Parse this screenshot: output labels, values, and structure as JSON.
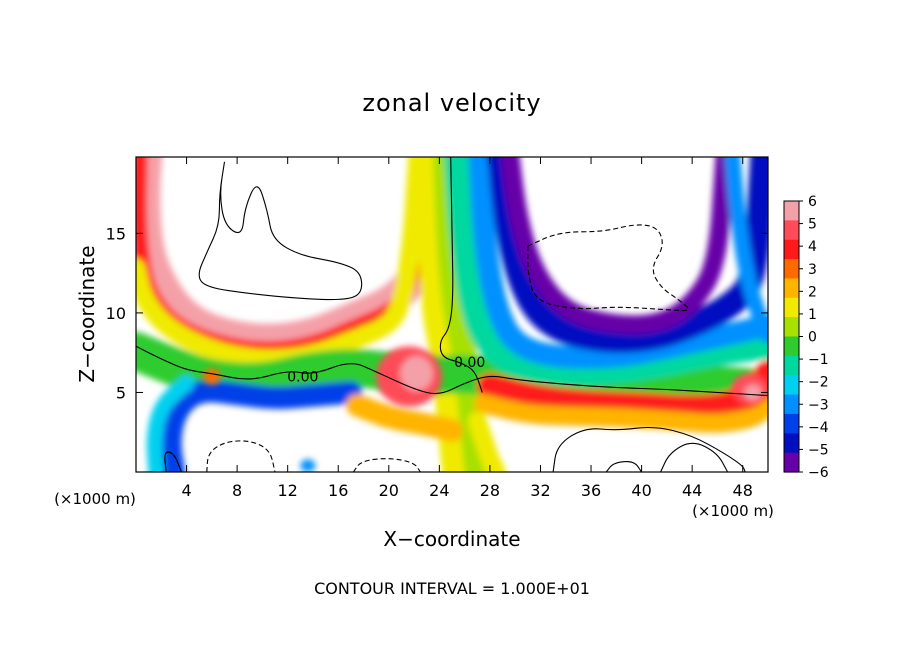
{
  "chart_data": {
    "type": "heatmap",
    "title": "zonal velocity",
    "xlabel": "X−coordinate",
    "ylabel": "Z−coordinate",
    "x_unit_left": "(×1000 m)",
    "x_unit_right": "(×1000 m)",
    "footer": "CONTOUR INTERVAL = 1.000E+01",
    "xlim": [
      0,
      50
    ],
    "ylim": [
      0,
      19.8
    ],
    "x_ticks": [
      4,
      8,
      12,
      16,
      20,
      24,
      28,
      32,
      36,
      40,
      44,
      48
    ],
    "y_ticks": [
      5,
      10,
      15
    ],
    "contour_labels": [
      {
        "text": "0.00",
        "x": 13.2,
        "y": 6.0
      },
      {
        "text": "0.00",
        "x": 26.4,
        "y": 6.9
      }
    ],
    "colorbar": {
      "range": [
        -6,
        6
      ],
      "ticks": [
        6,
        5,
        4,
        3,
        2,
        1,
        0,
        -1,
        -2,
        -3,
        -4,
        -5,
        -6
      ],
      "tick_labels": [
        "6",
        "5",
        "4",
        "3",
        "2",
        "1",
        "0",
        "−1",
        "−2",
        "−3",
        "−4",
        "−5",
        "−6"
      ],
      "colors": [
        "#f4a0a8",
        "#ff4c58",
        "#ff1a1a",
        "#ff6a00",
        "#ffb400",
        "#f0ea00",
        "#a8e000",
        "#2ecc2e",
        "#00d8a0",
        "#00d0f0",
        "#0090ff",
        "#0040e8",
        "#0010c0",
        "#6600a8"
      ]
    },
    "bands": [
      {
        "value": 5.2,
        "w": 2.0,
        "pts": [
          [
            0.8,
            19.8
          ],
          [
            0.6,
            17
          ],
          [
            0.9,
            14
          ],
          [
            1.8,
            12
          ],
          [
            3.5,
            10
          ],
          [
            6,
            8.8
          ],
          [
            10,
            8.2
          ],
          [
            14,
            8.6
          ],
          [
            17.5,
            9.8
          ],
          [
            20,
            10.6
          ],
          [
            22,
            12
          ],
          [
            23,
            15
          ],
          [
            23.6,
            19.8
          ]
        ]
      },
      {
        "value": 3.8,
        "w": 1.0,
        "pts": [
          [
            0.3,
            19.8
          ],
          [
            0.2,
            16
          ],
          [
            0.5,
            13
          ],
          [
            1.2,
            11
          ],
          [
            3,
            9.3
          ],
          [
            6,
            8.2
          ],
          [
            10,
            7.6
          ],
          [
            14,
            8.0
          ],
          [
            17.5,
            9.2
          ],
          [
            20,
            10.0
          ],
          [
            21.6,
            11.4
          ],
          [
            22.5,
            15
          ],
          [
            23,
            19.8
          ]
        ]
      },
      {
        "value": 1.6,
        "w": 1.2,
        "pts": [
          [
            0,
            12.8
          ],
          [
            0.6,
            10.8
          ],
          [
            2.5,
            9.0
          ],
          [
            6,
            7.6
          ],
          [
            10,
            7.0
          ],
          [
            14,
            7.3
          ],
          [
            17.5,
            8.4
          ],
          [
            20,
            9.2
          ],
          [
            21,
            10.5
          ],
          [
            21.8,
            14
          ],
          [
            22.3,
            19.8
          ]
        ]
      },
      {
        "value": 1.2,
        "w": 2.2,
        "pts": [
          [
            23.5,
            19.8
          ],
          [
            23.7,
            14
          ],
          [
            24,
            10
          ],
          [
            24.6,
            7.8
          ],
          [
            25,
            5
          ],
          [
            25.3,
            2.5
          ],
          [
            25.6,
            0
          ]
        ]
      },
      {
        "value": 0.3,
        "w": 1.6,
        "pts": [
          [
            24.5,
            19.8
          ],
          [
            24.8,
            14
          ],
          [
            25.3,
            10
          ],
          [
            26,
            7.5
          ],
          [
            26.5,
            4
          ],
          [
            27,
            0
          ]
        ]
      },
      {
        "value": 0.0,
        "w": 2.4,
        "pts": [
          [
            0,
            7.6
          ],
          [
            3,
            6.6
          ],
          [
            6,
            5.8
          ],
          [
            10,
            5.6
          ],
          [
            14,
            6.4
          ],
          [
            18,
            6.6
          ],
          [
            22,
            6.0
          ],
          [
            26,
            6.2
          ],
          [
            30,
            5.9
          ],
          [
            34,
            5.6
          ],
          [
            38,
            5.5
          ],
          [
            42,
            5.6
          ],
          [
            46,
            5.5
          ],
          [
            50,
            5.2
          ]
        ]
      },
      {
        "value": -1.4,
        "w": 1.8,
        "pts": [
          [
            25.5,
            19.8
          ],
          [
            26,
            14
          ],
          [
            26.8,
            10
          ],
          [
            28,
            8
          ],
          [
            30,
            6.8
          ],
          [
            34,
            6.3
          ],
          [
            38,
            6.4
          ],
          [
            42,
            6.9
          ],
          [
            46,
            7.6
          ],
          [
            50,
            8.0
          ]
        ]
      },
      {
        "value": -3.2,
        "w": 1.4,
        "pts": [
          [
            27.2,
            19.8
          ],
          [
            27.6,
            14
          ],
          [
            28.6,
            10
          ],
          [
            30,
            8.0
          ],
          [
            33,
            7.2
          ],
          [
            38,
            7.2
          ],
          [
            42,
            7.8
          ],
          [
            46,
            8.5
          ],
          [
            50,
            9.2
          ]
        ]
      },
      {
        "value": -4.8,
        "w": 1.6,
        "pts": [
          [
            28.8,
            19.8
          ],
          [
            29.4,
            15
          ],
          [
            30.8,
            11
          ],
          [
            33,
            9.0
          ],
          [
            37,
            8.2
          ],
          [
            41,
            8.4
          ],
          [
            44,
            9.2
          ],
          [
            47,
            10.4
          ],
          [
            49,
            12
          ],
          [
            49.6,
            19.8
          ]
        ]
      },
      {
        "value": -5.6,
        "w": 1.2,
        "pts": [
          [
            29.6,
            19.8
          ],
          [
            30.2,
            16
          ],
          [
            31.5,
            12.5
          ],
          [
            34,
            10
          ],
          [
            38,
            9.2
          ],
          [
            41.5,
            9.3
          ],
          [
            44,
            10.5
          ],
          [
            46,
            13
          ],
          [
            46.6,
            19.8
          ]
        ]
      },
      {
        "value": -3.0,
        "w": 1.0,
        "pts": [
          [
            47.2,
            19.8
          ],
          [
            47.6,
            16
          ],
          [
            48.4,
            12
          ],
          [
            49.4,
            9.6
          ],
          [
            50,
            8.6
          ]
        ]
      },
      {
        "value": -3.6,
        "w": 1.4,
        "pts": [
          [
            3,
            0
          ],
          [
            2.6,
            2
          ],
          [
            3.2,
            4
          ],
          [
            5,
            5.2
          ],
          [
            8,
            4.9
          ],
          [
            11,
            4.6
          ],
          [
            14,
            4.8
          ],
          [
            17,
            5.0
          ]
        ]
      },
      {
        "value": -2.2,
        "w": 1.0,
        "pts": [
          [
            1.6,
            0
          ],
          [
            1.4,
            2.2
          ],
          [
            2.0,
            4.2
          ],
          [
            4,
            5.6
          ]
        ]
      },
      {
        "value": 2.2,
        "w": 1.4,
        "pts": [
          [
            17.5,
            4.2
          ],
          [
            20,
            3.4
          ],
          [
            23,
            3.0
          ],
          [
            25,
            2.6
          ]
        ]
      },
      {
        "value": 4.2,
        "w": 1.6,
        "pts": [
          [
            28,
            5.4
          ],
          [
            32,
            4.6
          ],
          [
            36,
            4.3
          ],
          [
            40,
            4.2
          ],
          [
            44,
            4.0
          ],
          [
            47,
            4.2
          ],
          [
            49,
            5.0
          ],
          [
            50,
            6.2
          ]
        ]
      },
      {
        "value": 2.0,
        "w": 1.2,
        "pts": [
          [
            27.5,
            4.3
          ],
          [
            31,
            3.6
          ],
          [
            35,
            3.5
          ],
          [
            39,
            3.4
          ],
          [
            43,
            3.2
          ],
          [
            46,
            3.0
          ],
          [
            49,
            3.4
          ],
          [
            50,
            4.2
          ]
        ]
      },
      {
        "value": 1.0,
        "w": 1.2,
        "pts": [
          [
            27,
            3.2
          ],
          [
            27.5,
            2.0
          ],
          [
            28,
            0.8
          ],
          [
            28.5,
            0
          ]
        ]
      }
    ],
    "blobs": [
      {
        "value": 4.5,
        "cx": 21.6,
        "cy": 6.0,
        "rx": 2.6,
        "ry": 1.9
      },
      {
        "value": 5.4,
        "cx": 22.2,
        "cy": 6.2,
        "rx": 1.3,
        "ry": 1.1
      },
      {
        "value": 5.8,
        "cx": 22.4,
        "cy": 6.3,
        "rx": 0.7,
        "ry": 0.6
      },
      {
        "value": 4.8,
        "cx": 48.6,
        "cy": 5.2,
        "rx": 1.5,
        "ry": 1.0
      },
      {
        "value": 5.6,
        "cx": 48.8,
        "cy": 5.0,
        "rx": 0.7,
        "ry": 0.5
      },
      {
        "value": 3.4,
        "cx": 6.0,
        "cy": 6.0,
        "rx": 0.7,
        "ry": 0.5
      },
      {
        "value": -3.4,
        "cx": 13.6,
        "cy": 0.4,
        "rx": 0.6,
        "ry": 0.4
      }
    ],
    "contour_lines": [
      {
        "style": "solid",
        "pts": [
          [
            0,
            7.9
          ],
          [
            2,
            7.1
          ],
          [
            4,
            6.4
          ],
          [
            6,
            6.2
          ],
          [
            9,
            5.7
          ],
          [
            12,
            6.4
          ],
          [
            14,
            6.1
          ],
          [
            17,
            7.0
          ],
          [
            19,
            6.3
          ],
          [
            22,
            5.2
          ],
          [
            24,
            4.8
          ],
          [
            26,
            5.6
          ],
          [
            28,
            6.1
          ],
          [
            30,
            5.8
          ],
          [
            34,
            5.5
          ],
          [
            38,
            5.3
          ],
          [
            42,
            5.2
          ],
          [
            46,
            5.0
          ],
          [
            50,
            4.8
          ]
        ]
      },
      {
        "style": "solid",
        "pts": [
          [
            24.9,
            19.8
          ],
          [
            25.0,
            15
          ],
          [
            25.1,
            11
          ],
          [
            24.8,
            9.0
          ],
          [
            24.0,
            8.2
          ],
          [
            24.2,
            7.2
          ],
          [
            25.6,
            6.9
          ],
          [
            26.8,
            6.4
          ],
          [
            27.4,
            5.0
          ]
        ]
      },
      {
        "style": "solid",
        "pts": [
          [
            7,
            19.5
          ],
          [
            6.6,
            17.5
          ],
          [
            7.0,
            15.5
          ],
          [
            8.4,
            14.8
          ],
          [
            8.6,
            16.6
          ],
          [
            9.6,
            18.4
          ],
          [
            10.4,
            16.4
          ],
          [
            10.8,
            14.6
          ],
          [
            13,
            13.6
          ],
          [
            16,
            13.2
          ],
          [
            17.8,
            12.6
          ],
          [
            17.9,
            11.2
          ],
          [
            16.5,
            10.8
          ],
          [
            13,
            10.9
          ],
          [
            9,
            11.2
          ],
          [
            5.6,
            11.6
          ],
          [
            4.8,
            12.3
          ],
          [
            5.6,
            13.8
          ],
          [
            6.6,
            15.5
          ],
          [
            6.6,
            17.5
          ],
          [
            7,
            19.5
          ]
        ]
      },
      {
        "style": "dashed",
        "pts": [
          [
            31,
            14.2
          ],
          [
            33.5,
            15.1
          ],
          [
            37,
            15.1
          ],
          [
            39.5,
            15.6
          ],
          [
            41.3,
            15.4
          ],
          [
            41.8,
            14.2
          ],
          [
            40.7,
            12.8
          ],
          [
            41.5,
            11.6
          ],
          [
            43,
            10.8
          ],
          [
            44,
            10.1
          ],
          [
            42,
            10.2
          ],
          [
            38,
            10.4
          ],
          [
            35,
            10.2
          ],
          [
            31.6,
            10.7
          ],
          [
            31.0,
            12.5
          ],
          [
            31,
            14.2
          ]
        ]
      },
      {
        "style": "dashed",
        "pts": [
          [
            5.6,
            0
          ],
          [
            5.7,
            1.2
          ],
          [
            7,
            1.9
          ],
          [
            9,
            2.0
          ],
          [
            10.6,
            1.4
          ],
          [
            11,
            0
          ]
        ]
      },
      {
        "style": "dashed",
        "pts": [
          [
            17.2,
            0
          ],
          [
            17.8,
            0.7
          ],
          [
            20,
            0.9
          ],
          [
            22,
            0.6
          ],
          [
            22.5,
            0
          ]
        ]
      },
      {
        "style": "solid",
        "pts": [
          [
            33,
            0
          ],
          [
            33.3,
            1.7
          ],
          [
            35.5,
            2.8
          ],
          [
            38,
            2.6
          ],
          [
            41,
            2.9
          ],
          [
            44,
            2.3
          ],
          [
            46.5,
            1.2
          ],
          [
            48,
            0.4
          ],
          [
            48.2,
            0
          ]
        ]
      },
      {
        "style": "solid",
        "pts": [
          [
            41.5,
            0
          ],
          [
            42.2,
            1.2
          ],
          [
            44,
            2.0
          ],
          [
            46,
            1.2
          ],
          [
            46.8,
            0
          ]
        ]
      },
      {
        "style": "solid",
        "pts": [
          [
            37.2,
            0
          ],
          [
            37.8,
            0.6
          ],
          [
            39.4,
            0.7
          ],
          [
            40,
            0
          ]
        ]
      },
      {
        "style": "solid",
        "pts": [
          [
            2.4,
            0
          ],
          [
            2.2,
            1.3
          ],
          [
            3.0,
            1.2
          ],
          [
            3.6,
            0
          ]
        ]
      }
    ]
  }
}
